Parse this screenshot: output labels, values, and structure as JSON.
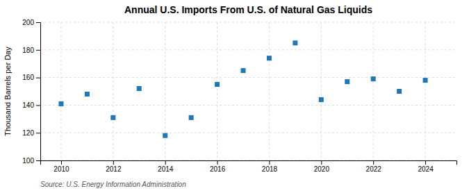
{
  "chart_data": {
    "type": "scatter",
    "title": "Annual U.S. Imports From U.S. of Natural Gas Liquids",
    "ylabel": "Thousand Barrels per Day",
    "annotations": [
      "Source: U.S. Energy Information Administration"
    ],
    "x": [
      2010,
      2011,
      2012,
      2013,
      2014,
      2015,
      2016,
      2017,
      2018,
      2019,
      2020,
      2021,
      2022,
      2023,
      2024
    ],
    "values": [
      141,
      148,
      131,
      152,
      118,
      131,
      155,
      165,
      174,
      185,
      144,
      157,
      159,
      150,
      158
    ],
    "xlim": [
      2009.2,
      2025.2
    ],
    "xticks": [
      2010,
      2012,
      2014,
      2016,
      2018,
      2020,
      2022,
      2024
    ],
    "ylim": [
      100,
      200
    ],
    "yticks": [
      100,
      120,
      140,
      160,
      180,
      200
    ],
    "marker": "square",
    "grid": true
  }
}
